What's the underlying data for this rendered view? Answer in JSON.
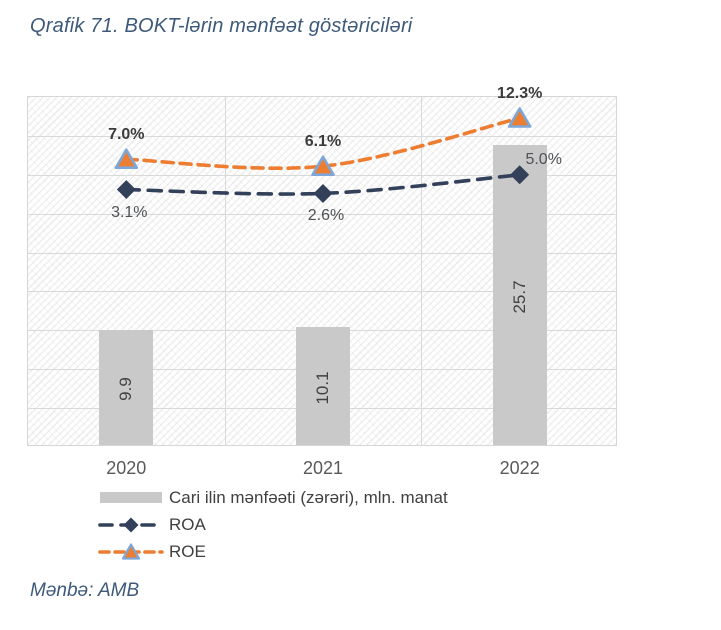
{
  "figure_title": "Qrafik 71. BOKT-lərin mənfəət göstəriciləri",
  "source_note": "Mənbə: AMB",
  "colors": {
    "bar_fill": "#c9c9c9",
    "roa_line": "#32405a",
    "roe_line": "#ed7d31",
    "triangle_marker_stroke": "#7da7d9",
    "title_text": "#3d5a7a",
    "gridline": "#d9d9d9",
    "axis_text": "#595959",
    "data_label_text": "#404040"
  },
  "chart_data": {
    "type": "combo",
    "title": "Qrafik 71. BOKT-lərin mənfəət göstəriciləri",
    "categories": [
      "2020",
      "2021",
      "2022"
    ],
    "series": [
      {
        "name": "Cari ilin mənfəəti (zərəri), mln. manat",
        "type": "bar",
        "axis": "primary",
        "values": [
          9.9,
          10.1,
          25.7
        ],
        "labels": [
          "9.9",
          "10.1",
          "25.7"
        ],
        "color": "#c9c9c9"
      },
      {
        "name": "ROA",
        "type": "line",
        "axis": "secondary",
        "values": [
          3.1,
          2.6,
          5.0
        ],
        "labels": [
          "3.1%",
          "2.6%",
          "5.0%"
        ],
        "label_pos": [
          "below",
          "below",
          "right"
        ],
        "label_bold": false,
        "color": "#32405a",
        "dash": "13 9",
        "marker": "diamond"
      },
      {
        "name": "ROE",
        "type": "line",
        "axis": "secondary",
        "values": [
          7.0,
          6.1,
          12.3
        ],
        "labels": [
          "7.0%",
          "6.1%",
          "12.3%"
        ],
        "label_pos": [
          "above",
          "above",
          "above"
        ],
        "label_bold": true,
        "color": "#ed7d31",
        "dash": "11 7",
        "marker": "triangle",
        "marker_stroke": "#7da7d9"
      }
    ],
    "axes": {
      "primary": {
        "min": 0,
        "max": 30,
        "labels_visible": false
      },
      "secondary": {
        "min": -30,
        "max": 15,
        "step": 5,
        "labels_visible": false
      }
    },
    "gridlines": {
      "horizontal": true,
      "vertical": true,
      "color": "#d9d9d9"
    },
    "legend_position": "bottom-left"
  },
  "legend": [
    {
      "label": "Cari ilin mənfəəti (zərəri), mln. manat",
      "series": 0
    },
    {
      "label": "ROA",
      "series": 1
    },
    {
      "label": "ROE",
      "series": 2
    }
  ]
}
